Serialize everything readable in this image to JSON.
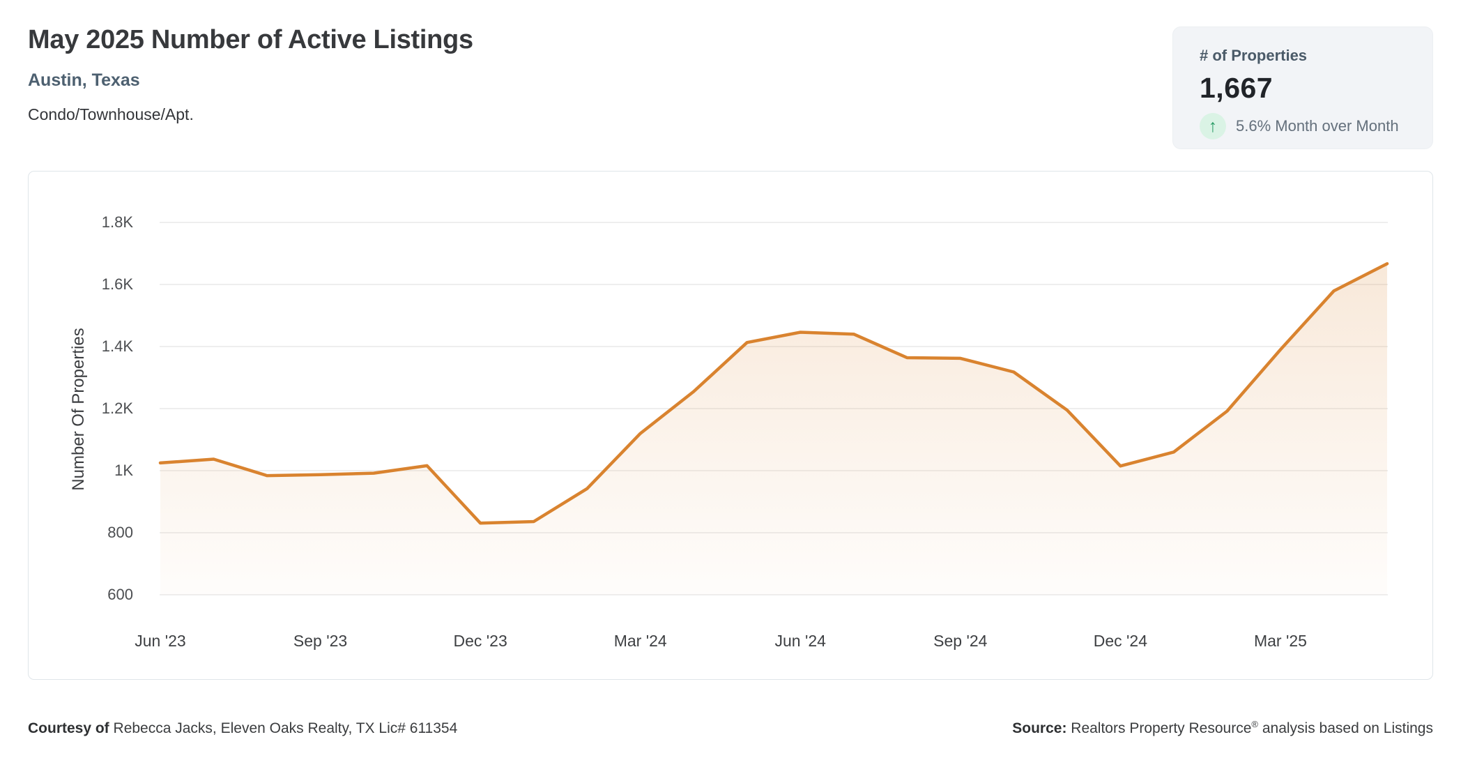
{
  "header": {
    "title": "May 2025 Number of Active Listings",
    "location": "Austin, Texas",
    "property_type": "Condo/Townhouse/Apt."
  },
  "stat_card": {
    "label": "# of Properties",
    "value": "1,667",
    "trend_icon": "↑",
    "trend_direction": "up",
    "trend_text": "5.6% Month over Month",
    "trend_arrow_color": "#2b9d66",
    "trend_circle_color": "#daf3e5"
  },
  "chart_data": {
    "type": "area",
    "title": "May 2025 Number of Active Listings",
    "ylabel": "Number Of Properties",
    "xlabel": "",
    "grid": "horizontal",
    "legend": "none",
    "ylim": [
      600,
      1800
    ],
    "yticks": [
      600,
      800,
      1000,
      1200,
      1400,
      1600,
      1800
    ],
    "ytick_labels": [
      "600",
      "800",
      "1K",
      "1.2K",
      "1.4K",
      "1.6K",
      "1.8K"
    ],
    "x": [
      "Jun '23",
      "Jul '23",
      "Aug '23",
      "Sep '23",
      "Oct '23",
      "Nov '23",
      "Dec '23",
      "Jan '24",
      "Feb '24",
      "Mar '24",
      "Apr '24",
      "May '24",
      "Jun '24",
      "Jul '24",
      "Aug '24",
      "Sep '24",
      "Oct '24",
      "Nov '24",
      "Dec '24",
      "Jan '25",
      "Feb '25",
      "Mar '25",
      "Apr '25",
      "May '25"
    ],
    "xtick_every": 3,
    "series": [
      {
        "name": "Number Of Properties",
        "values": [
          1025,
          1037,
          984,
          987,
          992,
          1016,
          831,
          836,
          942,
          1120,
          1255,
          1413,
          1446,
          1440,
          1364,
          1362,
          1318,
          1195,
          1015,
          1060,
          1192,
          1390,
          1579,
          1667
        ]
      }
    ],
    "line_color": "#d9832f",
    "line_width": 4.5,
    "fill_top": "rgba(217,131,47,0.18)",
    "fill_bottom": "rgba(217,131,47,0.02)"
  },
  "footer": {
    "courtesy_label": "Courtesy of",
    "courtesy_text": " Rebecca Jacks, Eleven Oaks Realty, TX Lic# 611354",
    "source_label": "Source:",
    "source_name": " Realtors Property Resource",
    "source_sup": "®",
    "source_rest": " analysis based on Listings"
  }
}
